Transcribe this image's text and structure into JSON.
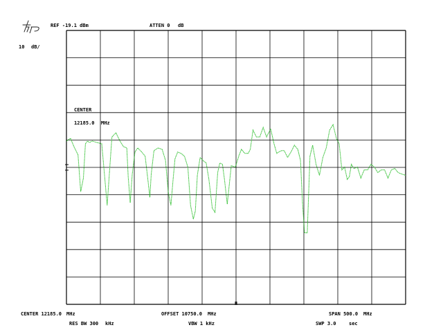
{
  "header": {
    "ref_label": "REF -19.1 dBm",
    "atten_label": "ATTEN 0",
    "atten_unit": "dB",
    "scale_label": "10",
    "scale_unit": "dB/"
  },
  "marker_readout": {
    "title": "CENTER",
    "value": "12185.0",
    "unit": "MHz"
  },
  "footer": {
    "center_label": "CENTER 12185.0",
    "center_unit": "MHz",
    "offset_label": "OFFSET 10750.0",
    "offset_unit": "MHz",
    "span_label": "SPAN 500.0",
    "span_unit": "MHz",
    "rbw_label": "RES BW 300",
    "rbw_unit": "kHz",
    "vbw_label": "VBW 1 kHz",
    "swp_label": "SWP 3.0",
    "swp_unit": "sec"
  },
  "chart_data": {
    "type": "line",
    "trace_color": "#22bb22",
    "grid": true,
    "x_range": [
      11935,
      12435
    ],
    "y_range": [
      -119.1,
      -19.1
    ],
    "series": [
      {
        "x": [
          11935,
          11941,
          11946,
          11952,
          11956,
          11960,
          11963,
          11966,
          11969,
          11973,
          11980,
          11987,
          11992,
          11995,
          11998,
          12002,
          12008,
          12014,
          12019,
          12024,
          12026,
          12029,
          12032,
          12036,
          12040,
          12046,
          12051,
          12055,
          12058,
          12060,
          12064,
          12070,
          12076,
          12081,
          12085,
          12089,
          12092,
          12095,
          12099,
          12104,
          12109,
          12114,
          12118,
          12122,
          12125,
          12128,
          12132,
          12136,
          12141,
          12145,
          12150,
          12154,
          12158,
          12161,
          12165,
          12168,
          12172,
          12178,
          12184,
          12189,
          12193,
          12198,
          12203,
          12206,
          12210,
          12215,
          12220,
          12225,
          12230,
          12236,
          12241,
          12245,
          12248,
          12252,
          12256,
          12261,
          12266,
          12271,
          12276,
          12280,
          12283,
          12286,
          12290,
          12294,
          12298,
          12303,
          12308,
          12313,
          12318,
          12323,
          12328,
          12333,
          12337,
          12341,
          12345,
          12349,
          12352,
          12355,
          12359,
          12364,
          12369,
          12374,
          12379,
          12384,
          12389,
          12394,
          12399,
          12404,
          12409,
          12414,
          12419,
          12424,
          12429,
          12435
        ],
        "y": [
          -59.5,
          -58.5,
          -61.5,
          -64.5,
          -78,
          -73,
          -60.5,
          -59.5,
          -60,
          -59.5,
          -60,
          -60.5,
          -74.5,
          -83,
          -72.5,
          -58,
          -56.5,
          -59.5,
          -61.5,
          -62,
          -72.5,
          -82,
          -71.5,
          -63.5,
          -62,
          -63.5,
          -65,
          -73.5,
          -80,
          -71.5,
          -63,
          -62,
          -62.5,
          -66.5,
          -78,
          -83,
          -74,
          -66,
          -63.5,
          -64,
          -65,
          -69,
          -83,
          -88,
          -85,
          -72,
          -65.5,
          -66.5,
          -67.5,
          -73.5,
          -84,
          -85.5,
          -71,
          -67.5,
          -68,
          -73.5,
          -82.5,
          -68.5,
          -69,
          -65,
          -62.5,
          -64,
          -64,
          -62.5,
          -55.5,
          -58,
          -58,
          -54.5,
          -58,
          -55,
          -60.5,
          -64,
          -63.5,
          -63,
          -63,
          -65.5,
          -63.5,
          -61,
          -62.5,
          -66.5,
          -82,
          -93,
          -93,
          -65,
          -61,
          -68,
          -72,
          -65.5,
          -62,
          -55.5,
          -53.5,
          -58.5,
          -60.5,
          -70,
          -69,
          -73.5,
          -72.5,
          -68,
          -69.5,
          -69,
          -73,
          -70,
          -70,
          -68,
          -69,
          -71,
          -70,
          -70,
          -73,
          -70,
          -69.5,
          -71,
          -71.5,
          -72
        ]
      }
    ]
  }
}
